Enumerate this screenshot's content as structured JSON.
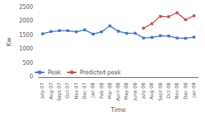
{
  "chart_data": {
    "type": "line",
    "categories": [
      "July 07",
      "Aug 07",
      "Sept 07",
      "Oct 07",
      "Nov 07",
      "Dec 07",
      "Jan 08",
      "Feb 08",
      "Mar 08",
      "April 08",
      "May 08",
      "June 08",
      "July 08",
      "Aug 08",
      "Sept 08",
      "Oct 08",
      "Nov 08",
      "Dec 08",
      "Jan 09"
    ],
    "series": [
      {
        "name": "Peak",
        "color": "#4472c4",
        "values": [
          1540,
          1620,
          1650,
          1650,
          1610,
          1680,
          1530,
          1610,
          1820,
          1630,
          1560,
          1560,
          1390,
          1410,
          1470,
          1460,
          1390,
          1380,
          1420
        ]
      },
      {
        "name": "Predicted peak",
        "color": "#c0504d",
        "values": [
          null,
          null,
          null,
          null,
          null,
          null,
          null,
          null,
          null,
          null,
          null,
          null,
          1740,
          1900,
          2160,
          2150,
          2290,
          2040,
          2180
        ]
      }
    ],
    "xlabel": "Time",
    "ylabel": "Kw",
    "ylim": [
      0,
      2500
    ],
    "yticks": [
      0,
      500,
      1000,
      1500,
      2000,
      2500
    ],
    "grid": false,
    "legend": "lower left",
    "marker": "square"
  }
}
